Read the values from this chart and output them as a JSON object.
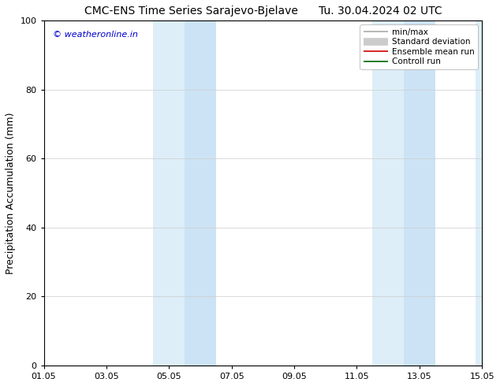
{
  "title_left": "CMC-ENS Time Series Sarajevo-Bjelave",
  "title_right": "Tu. 30.04.2024 02 UTC",
  "ylabel": "Precipitation Accumulation (mm)",
  "watermark": "© weatheronline.in",
  "watermark_color": "#0000cc",
  "ylim": [
    0,
    100
  ],
  "yticks": [
    0,
    20,
    40,
    60,
    80,
    100
  ],
  "xtick_labels": [
    "01.05",
    "03.05",
    "05.05",
    "07.05",
    "09.05",
    "11.05",
    "13.05",
    "15.05"
  ],
  "xtick_positions": [
    0,
    2,
    4,
    6,
    8,
    10,
    12,
    14
  ],
  "xlim": [
    0,
    14
  ],
  "shaded_bands": [
    {
      "x_start": 3.5,
      "x_end": 4.5,
      "color": "#ddeef8"
    },
    {
      "x_start": 4.5,
      "x_end": 5.5,
      "color": "#cce3f5"
    },
    {
      "x_start": 10.5,
      "x_end": 11.5,
      "color": "#ddeef8"
    },
    {
      "x_start": 11.5,
      "x_end": 12.5,
      "color": "#cce3f5"
    },
    {
      "x_start": 13.8,
      "x_end": 14.0,
      "color": "#ddeef8"
    }
  ],
  "legend_items": [
    {
      "label": "min/max",
      "color": "#aaaaaa",
      "linewidth": 1.2
    },
    {
      "label": "Standard deviation",
      "color": "#cccccc",
      "linewidth": 7
    },
    {
      "label": "Ensemble mean run",
      "color": "#cc0000",
      "linewidth": 1.2
    },
    {
      "label": "Controll run",
      "color": "#006600",
      "linewidth": 1.2
    }
  ],
  "background_color": "#ffffff",
  "plot_bg_color": "#ffffff",
  "grid_color": "#cccccc",
  "title_fontsize": 10,
  "tick_fontsize": 8,
  "label_fontsize": 9,
  "watermark_fontsize": 8
}
